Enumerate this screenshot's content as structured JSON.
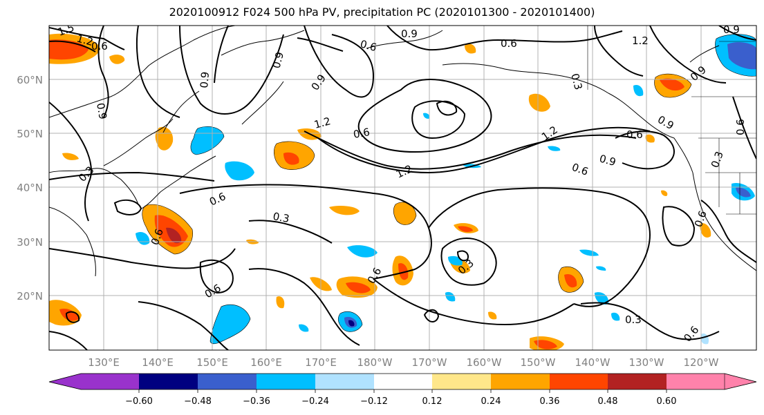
{
  "title": "2020100912 F024 500 hPa PV, precipitation PC (2020101300 - 2020101400)",
  "lat_labels": [
    "60°N",
    "50°N",
    "40°N",
    "30°N",
    "20°N"
  ],
  "lon_labels": [
    "130°E",
    "140°E",
    "150°E",
    "160°E",
    "170°E",
    "180°W",
    "170°W",
    "160°W",
    "150°W",
    "140°W",
    "130°W",
    "120°W"
  ],
  "colorbar": {
    "ticks": [
      "−0.60",
      "−0.48",
      "−0.36",
      "−0.24",
      "−0.12",
      "0.12",
      "0.24",
      "0.36",
      "0.48",
      "0.60"
    ],
    "colors": [
      "#9932cc",
      "#000080",
      "#3a5fcd",
      "#00bfff",
      "#b0e2ff",
      "#ffffff",
      "#ffe78a",
      "#ffa500",
      "#ff4500",
      "#b22222",
      "#ff82ab"
    ]
  },
  "contour_labels": [
    "1.5",
    "1.2",
    "0.6",
    "0.9",
    "0.9",
    "0.6",
    "0.9",
    "0.6",
    "1.2",
    "0.9",
    "0.9",
    "0.9",
    "0.6",
    "0.3",
    "0.9",
    "1.2",
    "0.6",
    "1.2",
    "1.2",
    "0.9",
    "0.6",
    "0.6",
    "0.3",
    "0.6",
    "0.6",
    "0.3",
    "0.6",
    "0.3",
    "0.6",
    "0.6",
    "0.3",
    "0.6",
    "0.3",
    "0.9",
    "0.9",
    "0.6",
    "0.6",
    "0.9"
  ]
}
